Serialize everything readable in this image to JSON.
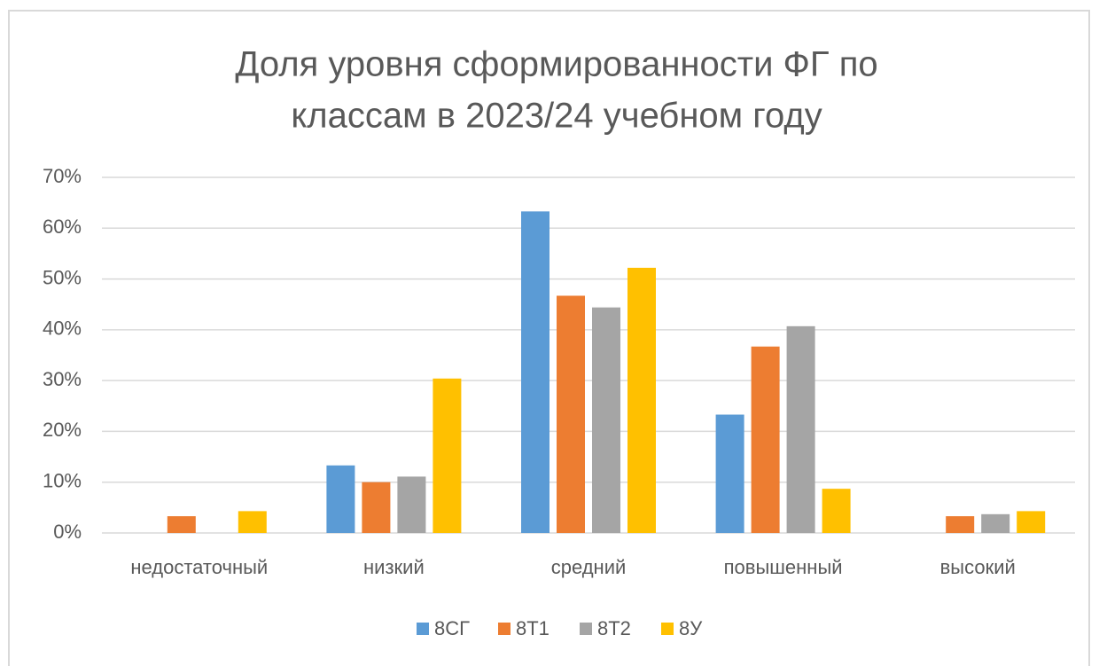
{
  "chart_data": {
    "type": "bar",
    "title": [
      "Доля уровня сформированности ФГ по",
      "классам в 2023/24 учебном году"
    ],
    "categories": [
      "недостаточный",
      "низкий",
      "средний",
      "повышенный",
      "высокий"
    ],
    "series": [
      {
        "name": "8СГ",
        "color": "#5b9bd5",
        "values": [
          0,
          13.3,
          63.3,
          23.3,
          0
        ]
      },
      {
        "name": "8Т1",
        "color": "#ed7d31",
        "values": [
          3.3,
          10,
          46.7,
          36.7,
          3.3
        ]
      },
      {
        "name": "8Т2",
        "color": "#a5a5a5",
        "values": [
          0,
          11.1,
          44.4,
          40.7,
          3.7
        ]
      },
      {
        "name": "8У",
        "color": "#ffc000",
        "values": [
          4.3,
          30.4,
          52.2,
          8.7,
          4.3
        ]
      }
    ],
    "ylim": [
      0,
      70
    ],
    "yticks": [
      {
        "value": 0,
        "label": "0%"
      },
      {
        "value": 10,
        "label": "10%"
      },
      {
        "value": 20,
        "label": "20%"
      },
      {
        "value": 30,
        "label": "30%"
      },
      {
        "value": 40,
        "label": "40%"
      },
      {
        "value": 50,
        "label": "50%"
      },
      {
        "value": 60,
        "label": "60%"
      },
      {
        "value": 70,
        "label": "70%"
      }
    ],
    "grid": true,
    "legend": "bottom"
  }
}
